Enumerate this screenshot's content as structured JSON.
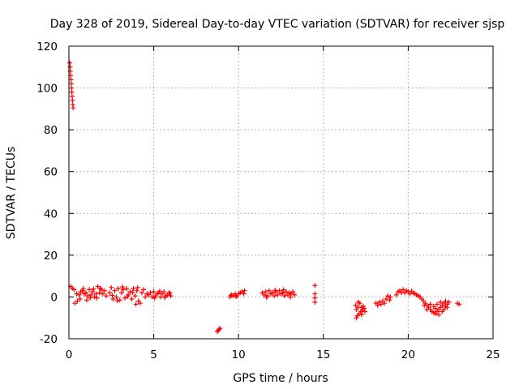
{
  "chart_data": {
    "type": "scatter",
    "title": "Day 328 of 2019, Sidereal Day-to-day VTEC variation (SDTVAR) for receiver sjsp",
    "xlabel": "GPS time / hours",
    "ylabel": "SDTVAR / TECUs",
    "xlim": [
      0,
      25
    ],
    "ylim": [
      -20,
      120
    ],
    "xticks": [
      0,
      5,
      10,
      15,
      20,
      25
    ],
    "yticks": [
      -20,
      0,
      20,
      40,
      60,
      80,
      100,
      120
    ],
    "xtick_labels": [
      "0",
      "5",
      "10",
      "15",
      "20",
      "25"
    ],
    "ytick_labels": [
      "-20",
      "0",
      "20",
      "40",
      "60",
      "80",
      "100",
      "120"
    ],
    "grid": true,
    "marker": "plus",
    "color": "#ff0000",
    "series": [
      {
        "name": "SDTVAR",
        "points": [
          [
            0.05,
            112
          ],
          [
            0.07,
            110
          ],
          [
            0.08,
            108
          ],
          [
            0.1,
            106
          ],
          [
            0.12,
            104
          ],
          [
            0.14,
            102
          ],
          [
            0.15,
            100
          ],
          [
            0.17,
            98
          ],
          [
            0.19,
            96
          ],
          [
            0.21,
            94
          ],
          [
            0.23,
            92
          ],
          [
            0.25,
            90.5
          ],
          [
            0.1,
            5
          ],
          [
            0.2,
            4.2
          ],
          [
            0.3,
            3.5
          ],
          [
            0.45,
            1.5
          ],
          [
            0.35,
            -3
          ],
          [
            0.5,
            -2
          ],
          [
            0.6,
            1
          ],
          [
            0.7,
            2.5
          ],
          [
            0.8,
            3
          ],
          [
            0.9,
            1.5
          ],
          [
            1.0,
            2
          ],
          [
            1.1,
            0.5
          ],
          [
            1.2,
            3.5
          ],
          [
            1.3,
            1
          ],
          [
            1.4,
            2.5
          ],
          [
            1.5,
            0
          ],
          [
            1.6,
            1.5
          ],
          [
            1.7,
            5
          ],
          [
            1.8,
            2
          ],
          [
            1.9,
            3.5
          ],
          [
            2.0,
            1.5
          ],
          [
            2.1,
            3
          ],
          [
            2.2,
            0.5
          ],
          [
            0.65,
            -1
          ],
          [
            0.85,
            4
          ],
          [
            1.05,
            -1.5
          ],
          [
            1.25,
            -0.5
          ],
          [
            1.45,
            3.8
          ],
          [
            1.65,
            -0.5
          ],
          [
            1.85,
            4.2
          ],
          [
            2.4,
            2
          ],
          [
            2.5,
            4.5
          ],
          [
            2.6,
            -1
          ],
          [
            2.7,
            3
          ],
          [
            2.8,
            0
          ],
          [
            2.9,
            4
          ],
          [
            3.0,
            -1.5
          ],
          [
            3.1,
            2
          ],
          [
            3.2,
            3.5
          ],
          [
            3.3,
            -0.5
          ],
          [
            3.4,
            4
          ],
          [
            3.5,
            1
          ],
          [
            3.6,
            2.5
          ],
          [
            3.7,
            -1
          ],
          [
            3.8,
            4
          ],
          [
            3.9,
            0.5
          ],
          [
            4.0,
            3
          ],
          [
            4.1,
            -2
          ],
          [
            4.2,
            -3
          ],
          [
            4.3,
            2
          ],
          [
            4.4,
            3.5
          ],
          [
            4.5,
            0
          ],
          [
            4.6,
            1.5
          ],
          [
            3.95,
            -3.5
          ],
          [
            4.05,
            4.5
          ],
          [
            2.55,
            0.8
          ],
          [
            2.85,
            -1.8
          ],
          [
            3.15,
            4.8
          ],
          [
            3.45,
            0.2
          ],
          [
            3.75,
            2.2
          ],
          [
            4.7,
            1
          ],
          [
            4.8,
            2
          ],
          [
            4.9,
            0
          ],
          [
            5.0,
            2.5
          ],
          [
            5.1,
            0.5
          ],
          [
            5.2,
            1.5
          ],
          [
            5.3,
            2
          ],
          [
            5.4,
            0
          ],
          [
            5.5,
            1.5
          ],
          [
            5.6,
            2.5
          ],
          [
            5.7,
            0.5
          ],
          [
            5.8,
            1
          ],
          [
            5.9,
            2
          ],
          [
            6.0,
            0.5
          ],
          [
            5.05,
            -0.5
          ],
          [
            5.35,
            2.8
          ],
          [
            5.65,
            -0.3
          ],
          [
            5.95,
            1.8
          ],
          [
            8.8,
            -16
          ],
          [
            8.85,
            -15.5
          ],
          [
            8.9,
            -15
          ],
          [
            8.75,
            -16.5
          ],
          [
            9.5,
            0
          ],
          [
            9.6,
            1
          ],
          [
            9.7,
            0.5
          ],
          [
            9.8,
            1.5
          ],
          [
            9.9,
            0.5
          ],
          [
            10.0,
            1.5
          ],
          [
            10.1,
            2
          ],
          [
            10.2,
            2.5
          ],
          [
            10.3,
            1.5
          ],
          [
            10.35,
            3
          ],
          [
            9.55,
            0.8
          ],
          [
            9.85,
            0.2
          ],
          [
            11.4,
            2
          ],
          [
            11.5,
            1
          ],
          [
            11.6,
            2.5
          ],
          [
            11.7,
            0.5
          ],
          [
            11.8,
            3
          ],
          [
            11.9,
            1.5
          ],
          [
            12.0,
            2
          ],
          [
            12.1,
            0.5
          ],
          [
            12.2,
            2.5
          ],
          [
            12.3,
            1
          ],
          [
            12.4,
            3
          ],
          [
            12.5,
            1.5
          ],
          [
            12.6,
            2
          ],
          [
            12.7,
            0.5
          ],
          [
            12.8,
            2.5
          ],
          [
            12.9,
            1
          ],
          [
            13.0,
            2
          ],
          [
            13.1,
            1.5
          ],
          [
            13.2,
            2.5
          ],
          [
            13.3,
            1
          ],
          [
            11.65,
            -0.2
          ],
          [
            12.15,
            3.2
          ],
          [
            12.65,
            3.4
          ],
          [
            13.05,
            -0.1
          ],
          [
            14.5,
            5.5
          ],
          [
            14.5,
            1.5
          ],
          [
            14.5,
            -0.5
          ],
          [
            14.5,
            -2.5
          ],
          [
            16.9,
            -4
          ],
          [
            16.95,
            -6
          ],
          [
            17.0,
            -9
          ],
          [
            17.05,
            -5
          ],
          [
            17.1,
            -8
          ],
          [
            17.15,
            -3
          ],
          [
            17.2,
            -7
          ],
          [
            17.25,
            -5
          ],
          [
            17.3,
            -6.5
          ],
          [
            17.35,
            -4.5
          ],
          [
            17.4,
            -5.5
          ],
          [
            17.45,
            -7
          ],
          [
            16.95,
            -10
          ],
          [
            17.05,
            -2.5
          ],
          [
            17.25,
            -8.5
          ],
          [
            18.1,
            -3
          ],
          [
            18.2,
            -4
          ],
          [
            18.3,
            -2.5
          ],
          [
            18.4,
            -3.5
          ],
          [
            18.5,
            -2
          ],
          [
            18.6,
            -3
          ],
          [
            18.7,
            -1
          ],
          [
            18.8,
            0.5
          ],
          [
            18.9,
            -1.5
          ],
          [
            18.95,
            0
          ],
          [
            19.3,
            1
          ],
          [
            19.4,
            2.5
          ],
          [
            19.5,
            3
          ],
          [
            19.6,
            2
          ],
          [
            19.7,
            3.5
          ],
          [
            19.8,
            2
          ],
          [
            19.9,
            3
          ],
          [
            20.0,
            2.5
          ],
          [
            20.1,
            1.5
          ],
          [
            20.2,
            2.8
          ],
          [
            20.3,
            2
          ],
          [
            20.4,
            1.5
          ],
          [
            20.5,
            1
          ],
          [
            20.6,
            0.5
          ],
          [
            20.7,
            0
          ],
          [
            20.8,
            -1
          ],
          [
            20.9,
            -2
          ],
          [
            21.0,
            -3
          ],
          [
            21.1,
            -4
          ],
          [
            21.2,
            -5
          ],
          [
            21.3,
            -6
          ],
          [
            21.4,
            -7
          ],
          [
            21.5,
            -7.5
          ],
          [
            21.6,
            -8
          ],
          [
            21.7,
            -7
          ],
          [
            21.8,
            -6
          ],
          [
            21.9,
            -5
          ],
          [
            22.0,
            -4
          ],
          [
            22.1,
            -3
          ],
          [
            22.2,
            -4.5
          ],
          [
            22.3,
            -3.5
          ],
          [
            21.3,
            -3.5
          ],
          [
            21.5,
            -4.5
          ],
          [
            21.7,
            -3.5
          ],
          [
            21.9,
            -2.5
          ],
          [
            22.1,
            -6
          ],
          [
            22.3,
            -5
          ],
          [
            21.1,
            -6
          ],
          [
            20.95,
            -4
          ],
          [
            22.0,
            -7
          ],
          [
            22.4,
            -2.5
          ],
          [
            21.6,
            -5.5
          ],
          [
            21.8,
            -8.5
          ],
          [
            22.2,
            -2
          ],
          [
            22.9,
            -3
          ],
          [
            23.0,
            -3.5
          ]
        ]
      }
    ]
  }
}
